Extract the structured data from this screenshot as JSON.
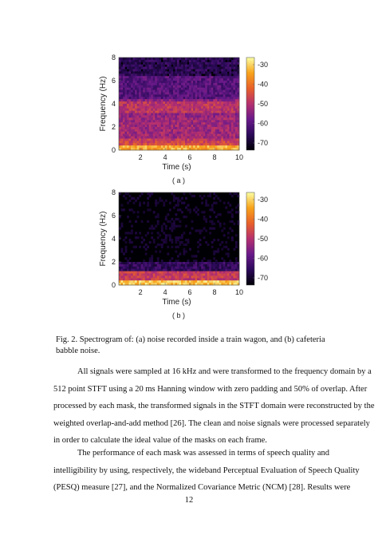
{
  "figure": {
    "panels": [
      {
        "sub_label": "( a )",
        "xlabel": "Time (s)",
        "ylabel": "Frequency (Hz)",
        "x_ticks": [
          "2",
          "4",
          "6",
          "8",
          "10"
        ],
        "y_ticks": [
          "8",
          "6",
          "4",
          "2",
          "0"
        ],
        "colorbar_ticks": [
          "-30",
          "-40",
          "-50",
          "-60",
          "-70"
        ]
      },
      {
        "sub_label": "( b )",
        "xlabel": "Time (s)",
        "ylabel": "Frequency (Hz)",
        "x_ticks": [
          "2",
          "4",
          "6",
          "8",
          "10"
        ],
        "y_ticks": [
          "8",
          "6",
          "4",
          "2",
          "0"
        ],
        "colorbar_ticks": [
          "-30",
          "-40",
          "-50",
          "-60",
          "-70"
        ]
      }
    ],
    "colormap": [
      "#000004",
      "#2c0a5a",
      "#6a1a8a",
      "#b5306f",
      "#e8602a",
      "#f8a31b",
      "#fcffa4"
    ],
    "caption": "Fig. 2. Spectrogram of: (a) noise recorded inside a train wagon, and (b) cafeteria babble noise."
  },
  "paragraphs": [
    [
      "All signals were sampled at 16 kHz and were transformed to the frequency domain by a",
      "512 point STFT using a 20 ms Hanning window with zero padding and 50% of overlap. After",
      "processed by each mask, the transformed signals in the STFT domain were reconstructed by the",
      "weighted overlap-and-add method [26]. The clean and noise signals were processed separately",
      "in order to calculate the ideal value of the masks on each frame."
    ],
    [
      "The performance of each mask was assessed in terms of speech quality and",
      "intelligibility by using, respectively, the wideband Perceptual Evaluation of Speech Quality",
      "(PESQ) measure [27], and the Normalized Covariance Metric (NCM) [28]. Results were"
    ]
  ],
  "page_number": "12"
}
